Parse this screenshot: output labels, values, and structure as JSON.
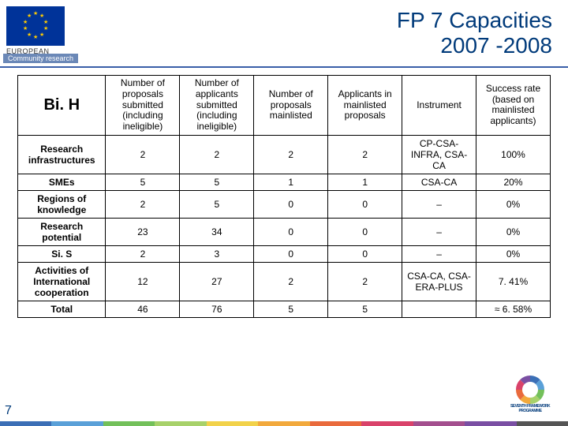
{
  "header": {
    "ec_text": "EUROPEAN\nCOMMISSION",
    "community_research": "Community research",
    "title_line1": "FP 7 Capacities",
    "title_line2": "2007 -2008"
  },
  "table": {
    "corner": "Bi. H",
    "columns": [
      "Number of proposals submitted (including ineligible)",
      "Number of applicants submitted (including ineligible)",
      "Number of proposals mainlisted",
      "Applicants in mainlisted proposals",
      "Instrument",
      "Success rate (based on mainlisted applicants)"
    ],
    "rows": [
      {
        "label": "Research infrastructures",
        "cells": [
          "2",
          "2",
          "2",
          "2",
          "CP-CSA-INFRA, CSA-CA",
          "100%"
        ]
      },
      {
        "label": "SMEs",
        "cells": [
          "5",
          "5",
          "1",
          "1",
          "CSA-CA",
          "20%"
        ]
      },
      {
        "label": "Regions of knowledge",
        "cells": [
          "2",
          "5",
          "0",
          "0",
          "–",
          "0%"
        ]
      },
      {
        "label": "Research potential",
        "cells": [
          "23",
          "34",
          "0",
          "0",
          "–",
          "0%"
        ]
      },
      {
        "label": "Si. S",
        "cells": [
          "2",
          "3",
          "0",
          "0",
          "–",
          "0%"
        ]
      },
      {
        "label": "Activities of International cooperation",
        "cells": [
          "12",
          "27",
          "2",
          "2",
          "CSA-CA, CSA-ERA-PLUS",
          "7. 41%"
        ]
      },
      {
        "label": "Total",
        "cells": [
          "46",
          "76",
          "5",
          "5",
          "",
          "≈ 6. 58%"
        ]
      }
    ],
    "font_size": 12,
    "border_color": "#000000"
  },
  "footer": {
    "page_number": "7",
    "fp7_label": "SEVENTH FRAMEWORK\nPROGRAMME"
  },
  "colors": {
    "title": "#003a7a",
    "header_line": "#3a5fa8",
    "eu_blue": "#003399",
    "eu_yellow": "#ffcc00",
    "fp7_segments": [
      "#3b6fb6",
      "#5aa0d8",
      "#73c05a",
      "#a7d16a",
      "#f2a93c",
      "#e96a3c",
      "#d9426a",
      "#7a4fa3"
    ],
    "footer_bar": [
      "#3b6fb6",
      "#5aa0d8",
      "#73c05a",
      "#a7d16a",
      "#f2d24a",
      "#f2a93c",
      "#e96a3c",
      "#d9426a",
      "#a34f8e",
      "#7a4fa3",
      "#555555"
    ]
  }
}
